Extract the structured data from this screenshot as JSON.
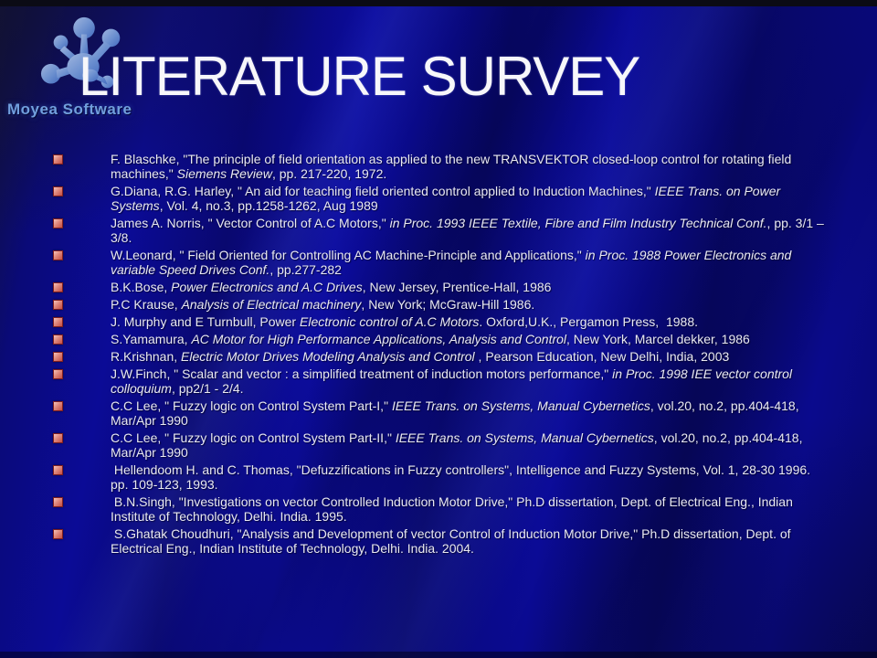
{
  "slide": {
    "title": "LITERATURE SURVEY",
    "watermark": "Moyea Software",
    "background_color": "#0a0a8e",
    "title_color": "#f7f7fa",
    "text_color": "#e9e9f2",
    "bullet_color": "#c24d44",
    "watermark_color": "#719fdd"
  },
  "references": [
    {
      "segments": [
        {
          "t": "F. Blaschke, \"The principle of field orientation as applied to the new TRANSVEKTOR closed-loop control for rotating field machines,\" ",
          "i": false
        },
        {
          "t": "Siemens Review",
          "i": true
        },
        {
          "t": ", pp. 217-220, 1972.",
          "i": false
        }
      ]
    },
    {
      "segments": [
        {
          "t": "G.Diana, R.G. Harley, \" An aid for teaching field oriented control applied to Induction Machines,\" ",
          "i": false
        },
        {
          "t": "IEEE Trans. on Power Systems",
          "i": true
        },
        {
          "t": ", Vol. 4, no.3, pp.1258-1262, Aug 1989",
          "i": false
        }
      ]
    },
    {
      "segments": [
        {
          "t": "James A. Norris, \" Vector Control of A.C Motors,\" ",
          "i": false
        },
        {
          "t": "in Proc. 1993 IEEE Textile, Fibre and Film Industry Technical Conf.",
          "i": true
        },
        {
          "t": ", pp. 3/1 – 3/8.",
          "i": false
        }
      ]
    },
    {
      "segments": [
        {
          "t": "W.Leonard, \" Field Oriented for Controlling AC Machine-Principle and Applications,\" ",
          "i": false
        },
        {
          "t": "in Proc. 1988 Power Electronics and variable Speed Drives Conf.",
          "i": true
        },
        {
          "t": ", pp.277-282",
          "i": false
        }
      ]
    },
    {
      "segments": [
        {
          "t": "B.K.Bose, ",
          "i": false
        },
        {
          "t": "Power Electronics and A.C Drives",
          "i": true
        },
        {
          "t": ", New Jersey, Prentice-Hall, 1986",
          "i": false
        }
      ]
    },
    {
      "segments": [
        {
          "t": "P.C Krause, ",
          "i": false
        },
        {
          "t": "Analysis of Electrical machinery",
          "i": true
        },
        {
          "t": ", New York; McGraw-Hill 1986.",
          "i": false
        }
      ]
    },
    {
      "segments": [
        {
          "t": "J. Murphy and E Turnbull, Power ",
          "i": false
        },
        {
          "t": "Electronic control of A.C Motors",
          "i": true
        },
        {
          "t": ". Oxford,U.K., Pergamon Press,  1988.",
          "i": false
        }
      ]
    },
    {
      "segments": [
        {
          "t": "S.Yamamura, ",
          "i": false
        },
        {
          "t": "AC Motor for High Performance Applications, Analysis and Control",
          "i": true
        },
        {
          "t": ", New York, Marcel dekker, 1986",
          "i": false
        }
      ]
    },
    {
      "segments": [
        {
          "t": "R.Krishnan, ",
          "i": false
        },
        {
          "t": "Electric Motor Drives Modeling Analysis and Control",
          "i": true
        },
        {
          "t": " , Pearson Education, New Delhi, India, 2003",
          "i": false
        }
      ]
    },
    {
      "segments": [
        {
          "t": "J.W.Finch, \" Scalar and vector : a simplified treatment of induction motors performance,\" ",
          "i": false
        },
        {
          "t": "in Proc. 1998 IEE vector control colloquium",
          "i": true
        },
        {
          "t": ", pp2/1 - 2/4.",
          "i": false
        }
      ]
    },
    {
      "segments": [
        {
          "t": "C.C Lee, \" Fuzzy logic on Control System Part-I,\" ",
          "i": false
        },
        {
          "t": "IEEE Trans. on Systems, Manual Cybernetics",
          "i": true
        },
        {
          "t": ", vol.20, no.2, pp.404-418, Mar/Apr 1990",
          "i": false
        }
      ]
    },
    {
      "segments": [
        {
          "t": "C.C Lee, \" Fuzzy logic on Control System Part-II,\" ",
          "i": false
        },
        {
          "t": "IEEE Trans. on Systems, Manual Cybernetics",
          "i": true
        },
        {
          "t": ", vol.20, no.2, pp.404-418, Mar/Apr 1990",
          "i": false
        }
      ]
    },
    {
      "segments": [
        {
          "t": " Hellendoom H. and C. Thomas, \"Defuzzifications in Fuzzy controllers\", Intelligence and Fuzzy Systems, Vol. 1, 28-30 1996. pp. 109-123, 1993.",
          "i": false
        }
      ]
    },
    {
      "segments": [
        {
          "t": " B.N.Singh, \"Investigations on vector Controlled Induction Motor Drive,\" Ph.D dissertation, Dept. of Electrical Eng., Indian Institute of Technology, Delhi. India. 1995.",
          "i": false
        }
      ]
    },
    {
      "segments": [
        {
          "t": " S.Ghatak Choudhuri, \"Analysis and Development of vector Control of Induction Motor Drive,\" Ph.D dissertation, Dept. of Electrical Eng., Indian Institute of Technology, Delhi. India. 2004.",
          "i": false
        }
      ]
    }
  ]
}
